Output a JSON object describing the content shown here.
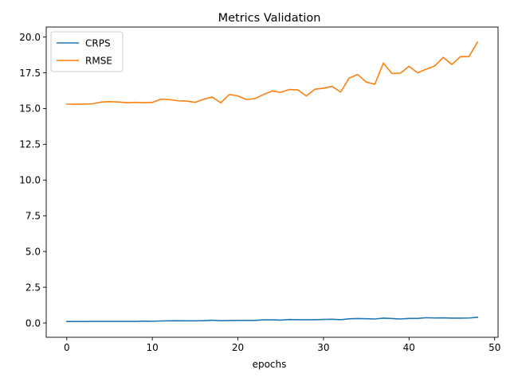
{
  "chart_data": {
    "type": "line",
    "title": "Metrics Validation",
    "xlabel": "epochs",
    "ylabel": "",
    "xlim": [
      -2.4,
      50.4
    ],
    "ylim": [
      -1.0,
      20.7
    ],
    "xticks": [
      0,
      10,
      20,
      30,
      40,
      50
    ],
    "yticks": [
      0.0,
      2.5,
      5.0,
      7.5,
      10.0,
      12.5,
      15.0,
      17.5,
      20.0
    ],
    "xtick_labels": [
      "0",
      "10",
      "20",
      "30",
      "40",
      "50"
    ],
    "ytick_labels": [
      "0.0",
      "2.5",
      "5.0",
      "7.5",
      "10.0",
      "12.5",
      "15.0",
      "17.5",
      "20.0"
    ],
    "grid": false,
    "legend_position": "top-left",
    "x": [
      0,
      1,
      2,
      3,
      4,
      5,
      6,
      7,
      8,
      9,
      10,
      11,
      12,
      13,
      14,
      15,
      16,
      17,
      18,
      19,
      20,
      21,
      22,
      23,
      24,
      25,
      26,
      27,
      28,
      29,
      30,
      31,
      32,
      33,
      34,
      35,
      36,
      37,
      38,
      39,
      40,
      41,
      42,
      43,
      44,
      45,
      46,
      47,
      48
    ],
    "series": [
      {
        "name": "CRPS",
        "color": "#1f77b4",
        "values": [
          0.1,
          0.1,
          0.1,
          0.11,
          0.11,
          0.11,
          0.11,
          0.11,
          0.11,
          0.13,
          0.12,
          0.14,
          0.15,
          0.16,
          0.15,
          0.15,
          0.16,
          0.19,
          0.16,
          0.17,
          0.18,
          0.18,
          0.18,
          0.22,
          0.22,
          0.2,
          0.24,
          0.23,
          0.23,
          0.23,
          0.25,
          0.26,
          0.23,
          0.29,
          0.31,
          0.3,
          0.28,
          0.34,
          0.31,
          0.28,
          0.32,
          0.32,
          0.37,
          0.35,
          0.36,
          0.34,
          0.34,
          0.35,
          0.4
        ]
      },
      {
        "name": "RMSE",
        "color": "#ff7f0e",
        "values": [
          15.31,
          15.3,
          15.31,
          15.33,
          15.45,
          15.48,
          15.46,
          15.41,
          15.43,
          15.41,
          15.43,
          15.65,
          15.63,
          15.54,
          15.52,
          15.43,
          15.65,
          15.8,
          15.4,
          15.98,
          15.88,
          15.63,
          15.7,
          15.98,
          16.23,
          16.13,
          16.33,
          16.3,
          15.88,
          16.35,
          16.42,
          16.55,
          16.15,
          17.13,
          17.38,
          16.85,
          16.7,
          18.18,
          17.45,
          17.48,
          17.95,
          17.5,
          17.75,
          17.98,
          18.58,
          18.08,
          18.63,
          18.63,
          19.65
        ]
      }
    ]
  }
}
